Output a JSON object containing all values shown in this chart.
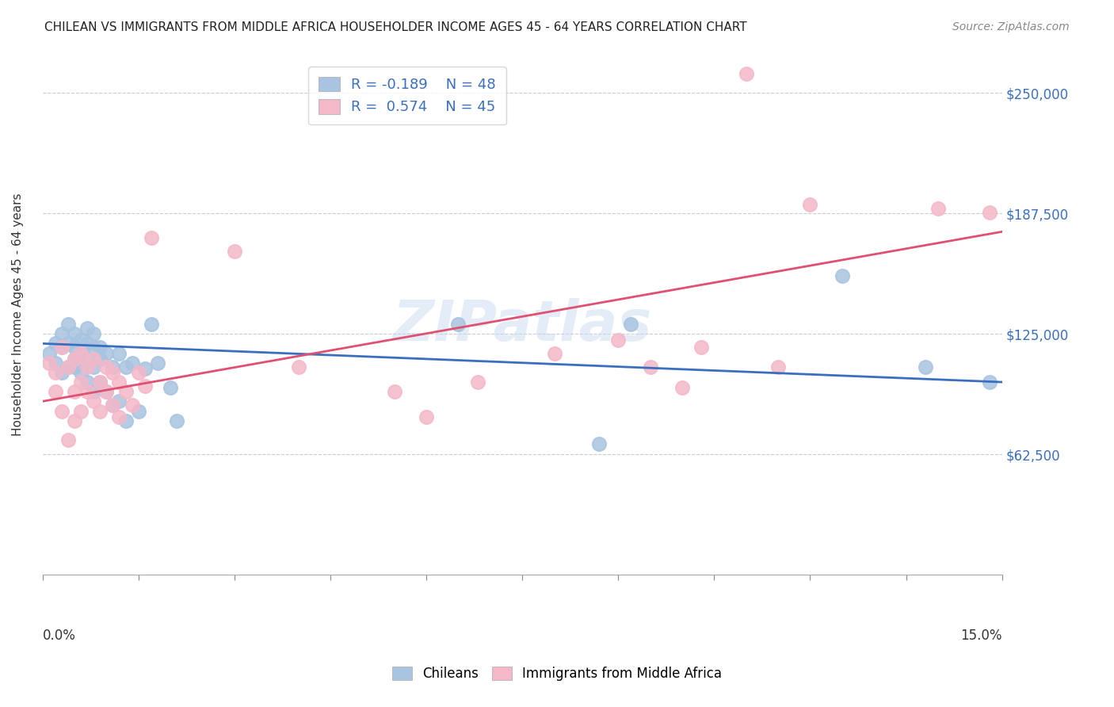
{
  "title": "CHILEAN VS IMMIGRANTS FROM MIDDLE AFRICA HOUSEHOLDER INCOME AGES 45 - 64 YEARS CORRELATION CHART",
  "source": "Source: ZipAtlas.com",
  "ylabel": "Householder Income Ages 45 - 64 years",
  "yticks": [
    0,
    62500,
    125000,
    187500,
    250000
  ],
  "ytick_labels": [
    "",
    "$62,500",
    "$125,000",
    "$187,500",
    "$250,000"
  ],
  "xlim": [
    0.0,
    0.15
  ],
  "ylim": [
    0,
    270000
  ],
  "legend_r_blue": "R = -0.189",
  "legend_n_blue": "N = 48",
  "legend_r_pink": "R =  0.574",
  "legend_n_pink": "N = 45",
  "blue_color": "#a8c4e0",
  "pink_color": "#f4b8c8",
  "blue_line_color": "#3a6fbf",
  "pink_line_color": "#e05070",
  "watermark": "ZIPatlas",
  "blue_points_x": [
    0.001,
    0.002,
    0.002,
    0.003,
    0.003,
    0.003,
    0.004,
    0.004,
    0.004,
    0.005,
    0.005,
    0.005,
    0.005,
    0.006,
    0.006,
    0.006,
    0.007,
    0.007,
    0.007,
    0.007,
    0.008,
    0.008,
    0.008,
    0.008,
    0.009,
    0.009,
    0.009,
    0.01,
    0.01,
    0.011,
    0.011,
    0.012,
    0.012,
    0.013,
    0.013,
    0.014,
    0.015,
    0.016,
    0.017,
    0.018,
    0.02,
    0.021,
    0.065,
    0.087,
    0.092,
    0.125,
    0.138,
    0.148
  ],
  "blue_points_y": [
    115000,
    120000,
    110000,
    125000,
    118000,
    105000,
    130000,
    120000,
    108000,
    125000,
    118000,
    112000,
    108000,
    122000,
    115000,
    105000,
    128000,
    120000,
    112000,
    100000,
    125000,
    118000,
    108000,
    95000,
    118000,
    112000,
    100000,
    115000,
    95000,
    108000,
    88000,
    115000,
    90000,
    108000,
    80000,
    110000,
    85000,
    107000,
    130000,
    110000,
    97000,
    80000,
    130000,
    68000,
    130000,
    155000,
    108000,
    100000
  ],
  "pink_points_x": [
    0.001,
    0.002,
    0.002,
    0.003,
    0.003,
    0.004,
    0.004,
    0.005,
    0.005,
    0.005,
    0.006,
    0.006,
    0.006,
    0.007,
    0.007,
    0.008,
    0.008,
    0.009,
    0.009,
    0.01,
    0.01,
    0.011,
    0.011,
    0.012,
    0.012,
    0.013,
    0.014,
    0.015,
    0.016,
    0.017,
    0.03,
    0.04,
    0.055,
    0.06,
    0.068,
    0.08,
    0.09,
    0.095,
    0.1,
    0.103,
    0.11,
    0.115,
    0.12,
    0.14,
    0.148
  ],
  "pink_points_y": [
    110000,
    105000,
    95000,
    118000,
    85000,
    108000,
    70000,
    112000,
    95000,
    80000,
    115000,
    100000,
    85000,
    108000,
    95000,
    112000,
    90000,
    100000,
    85000,
    108000,
    95000,
    105000,
    88000,
    100000,
    82000,
    95000,
    88000,
    105000,
    98000,
    175000,
    168000,
    108000,
    95000,
    82000,
    100000,
    115000,
    122000,
    108000,
    97000,
    118000,
    260000,
    108000,
    192000,
    190000,
    188000
  ]
}
